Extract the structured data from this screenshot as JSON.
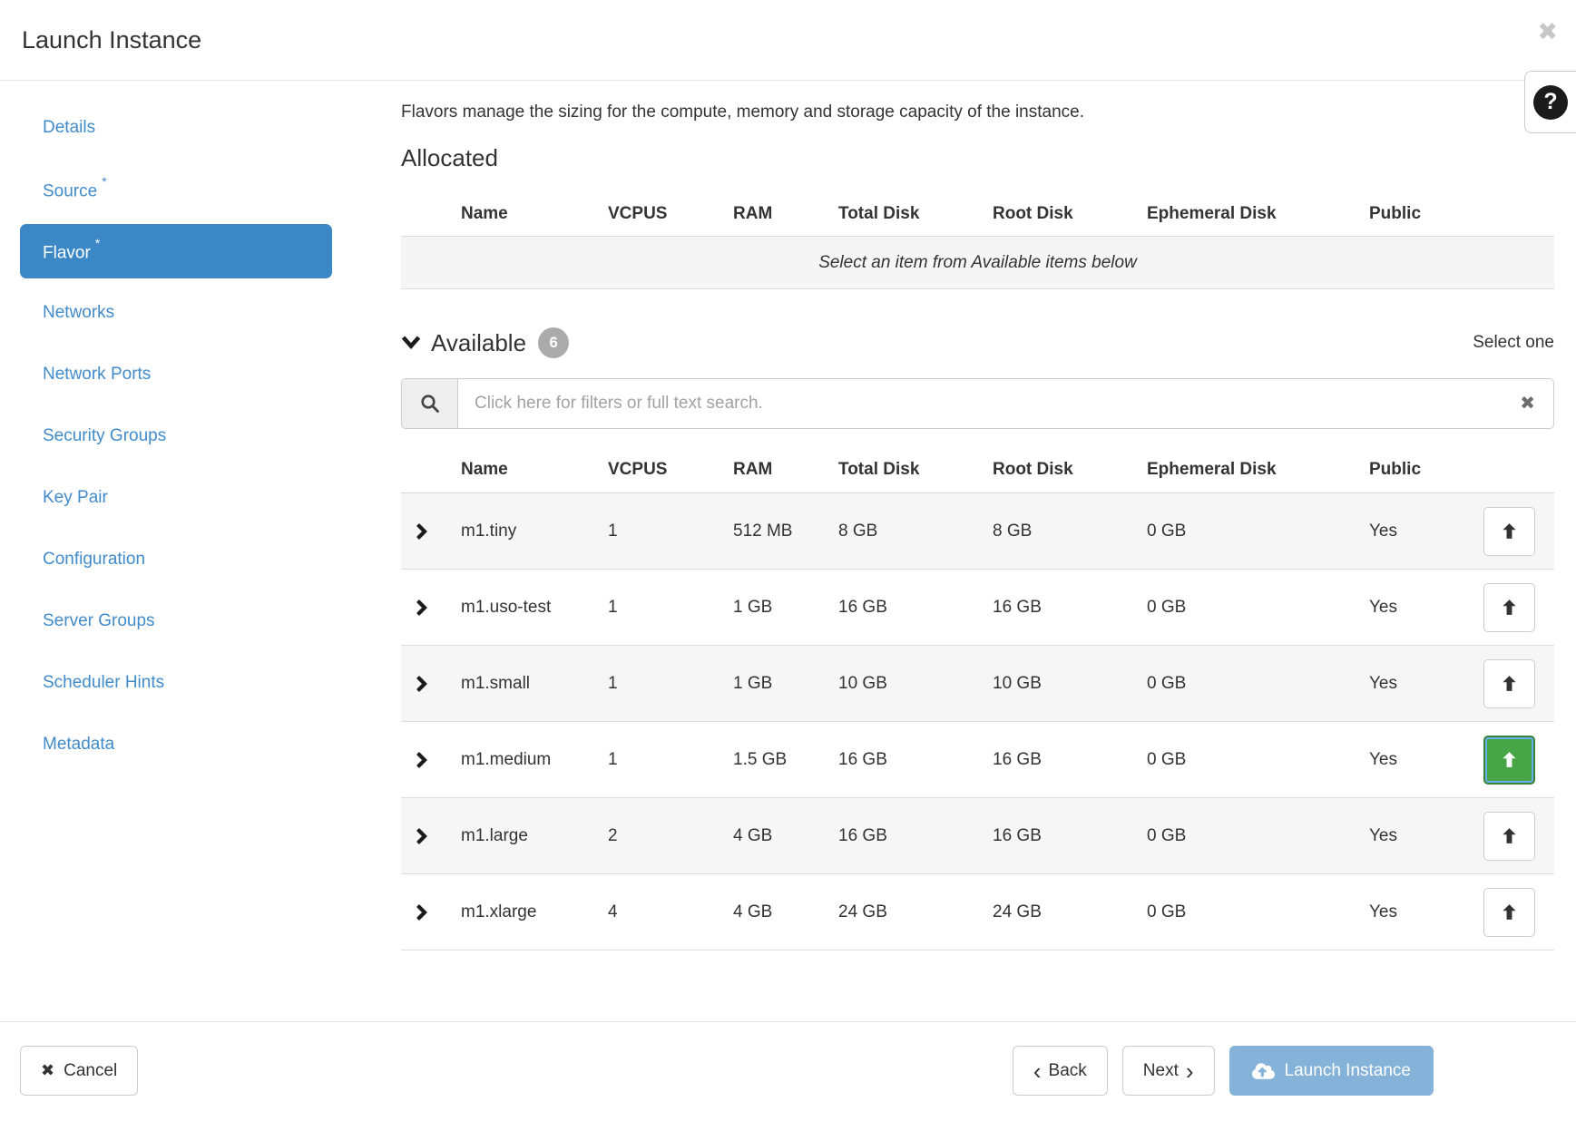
{
  "modal": {
    "title": "Launch Instance"
  },
  "sidebar": {
    "items": [
      {
        "label": "Details",
        "required": false,
        "active": false
      },
      {
        "label": "Source",
        "required": true,
        "active": false
      },
      {
        "label": "Flavor",
        "required": true,
        "active": true
      },
      {
        "label": "Networks",
        "required": false,
        "active": false
      },
      {
        "label": "Network Ports",
        "required": false,
        "active": false
      },
      {
        "label": "Security Groups",
        "required": false,
        "active": false
      },
      {
        "label": "Key Pair",
        "required": false,
        "active": false
      },
      {
        "label": "Configuration",
        "required": false,
        "active": false
      },
      {
        "label": "Server Groups",
        "required": false,
        "active": false
      },
      {
        "label": "Scheduler Hints",
        "required": false,
        "active": false
      },
      {
        "label": "Metadata",
        "required": false,
        "active": false
      }
    ]
  },
  "flavor_step": {
    "description": "Flavors manage the sizing for the compute, memory and storage capacity of the instance.",
    "allocated": {
      "title": "Allocated",
      "columns": [
        "Name",
        "VCPUS",
        "RAM",
        "Total Disk",
        "Root Disk",
        "Ephemeral Disk",
        "Public"
      ],
      "empty_message": "Select an item from Available items below"
    },
    "available": {
      "title": "Available",
      "count": "6",
      "select_hint": "Select one",
      "search_placeholder": "Click here for filters or full text search.",
      "columns": [
        "Name",
        "VCPUS",
        "RAM",
        "Total Disk",
        "Root Disk",
        "Ephemeral Disk",
        "Public"
      ],
      "rows": [
        {
          "name": "m1.tiny",
          "vcpus": "1",
          "ram": "512 MB",
          "total_disk": "8 GB",
          "root_disk": "8 GB",
          "ephemeral_disk": "0 GB",
          "public": "Yes",
          "selected": false
        },
        {
          "name": "m1.uso-test",
          "vcpus": "1",
          "ram": "1 GB",
          "total_disk": "16 GB",
          "root_disk": "16 GB",
          "ephemeral_disk": "0 GB",
          "public": "Yes",
          "selected": false
        },
        {
          "name": "m1.small",
          "vcpus": "1",
          "ram": "1 GB",
          "total_disk": "10 GB",
          "root_disk": "10 GB",
          "ephemeral_disk": "0 GB",
          "public": "Yes",
          "selected": false
        },
        {
          "name": "m1.medium",
          "vcpus": "1",
          "ram": "1.5 GB",
          "total_disk": "16 GB",
          "root_disk": "16 GB",
          "ephemeral_disk": "0 GB",
          "public": "Yes",
          "selected": true
        },
        {
          "name": "m1.large",
          "vcpus": "2",
          "ram": "4 GB",
          "total_disk": "16 GB",
          "root_disk": "16 GB",
          "ephemeral_disk": "0 GB",
          "public": "Yes",
          "selected": false
        },
        {
          "name": "m1.xlarge",
          "vcpus": "4",
          "ram": "4 GB",
          "total_disk": "24 GB",
          "root_disk": "24 GB",
          "ephemeral_disk": "0 GB",
          "public": "Yes",
          "selected": false
        }
      ]
    }
  },
  "footer": {
    "cancel_label": "Cancel",
    "back_label": "Back",
    "next_label": "Next",
    "launch_label": "Launch Instance"
  },
  "colors": {
    "accent_blue": "#428bca",
    "active_step_bg": "#3c87c6",
    "selected_green": "#47a447",
    "launch_button_blue": "#84b2d8"
  }
}
